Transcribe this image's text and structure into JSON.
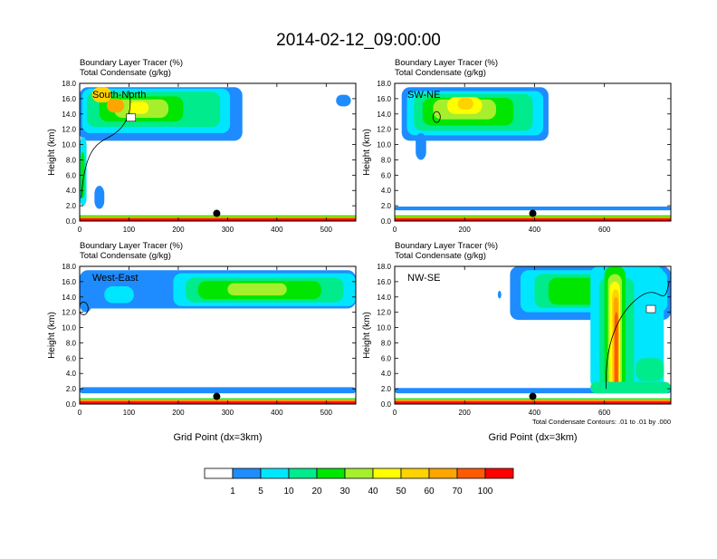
{
  "title": "2014-02-12_09:00:00",
  "y_axis_label": "Height (km)",
  "x_axis_label": "Grid Point (dx=3km)",
  "contour_note": "Total Condensate Contours: .01 to .01 by .000",
  "colorbar": {
    "levels": [
      "1",
      "5",
      "10",
      "20",
      "30",
      "40",
      "50",
      "60",
      "70",
      "100"
    ],
    "colors": [
      "#ffffff",
      "#1e8cff",
      "#00e6ff",
      "#00eb8c",
      "#00e600",
      "#a6ef2d",
      "#ffff00",
      "#ffd200",
      "#ffa500",
      "#ff5a00",
      "#ff0000"
    ]
  },
  "colors": {
    "frame": "#000000",
    "marker": "#000000",
    "contour": "#000000"
  },
  "chart_data": [
    {
      "type": "heatmap",
      "name": "South-North",
      "title_line1": "Boundary Layer Tracer   (%)",
      "title_line2": "Total Condensate   (g/kg)",
      "xlim": [
        0,
        560
      ],
      "ylim": [
        0,
        18
      ],
      "x_ticks": [
        0,
        100,
        200,
        300,
        400,
        500
      ],
      "y_ticks": [
        "0.0",
        "2.0",
        "4.0",
        "6.0",
        "8.0",
        "10.0",
        "12.0",
        "14.0",
        "16.0",
        "18.0"
      ],
      "marker": {
        "x": 278,
        "y": 1.0
      },
      "show_xlabel": false
    },
    {
      "type": "heatmap",
      "name": "SW-NE",
      "title_line1": "Boundary Layer Tracer   (%)",
      "title_line2": "Total Condensate   (g/kg)",
      "xlim": [
        0,
        790
      ],
      "ylim": [
        0,
        18
      ],
      "x_ticks": [
        0,
        200,
        400,
        600
      ],
      "y_ticks": [
        "0.0",
        "2.0",
        "4.0",
        "6.0",
        "8.0",
        "10.0",
        "12.0",
        "14.0",
        "16.0",
        "18.0"
      ],
      "marker": {
        "x": 395,
        "y": 1.0
      },
      "show_xlabel": false
    },
    {
      "type": "heatmap",
      "name": "West-East",
      "title_line1": "Boundary Layer Tracer   (%)",
      "title_line2": "Total Condensate   (g/kg)",
      "xlim": [
        0,
        560
      ],
      "ylim": [
        0,
        18
      ],
      "x_ticks": [
        0,
        100,
        200,
        300,
        400,
        500
      ],
      "y_ticks": [
        "0.0",
        "2.0",
        "4.0",
        "6.0",
        "8.0",
        "10.0",
        "12.0",
        "14.0",
        "16.0",
        "18.0"
      ],
      "marker": {
        "x": 278,
        "y": 1.0
      },
      "show_xlabel": true
    },
    {
      "type": "heatmap",
      "name": "NW-SE",
      "title_line1": "Boundary Layer Tracer   (%)",
      "title_line2": "Total Condensate   (g/kg)",
      "xlim": [
        0,
        790
      ],
      "ylim": [
        0,
        18
      ],
      "x_ticks": [
        0,
        200,
        400,
        600
      ],
      "y_ticks": [
        "0.0",
        "2.0",
        "4.0",
        "6.0",
        "8.0",
        "10.0",
        "12.0",
        "14.0",
        "16.0",
        "18.0"
      ],
      "marker": {
        "x": 395,
        "y": 1.0
      },
      "show_xlabel": true
    }
  ]
}
